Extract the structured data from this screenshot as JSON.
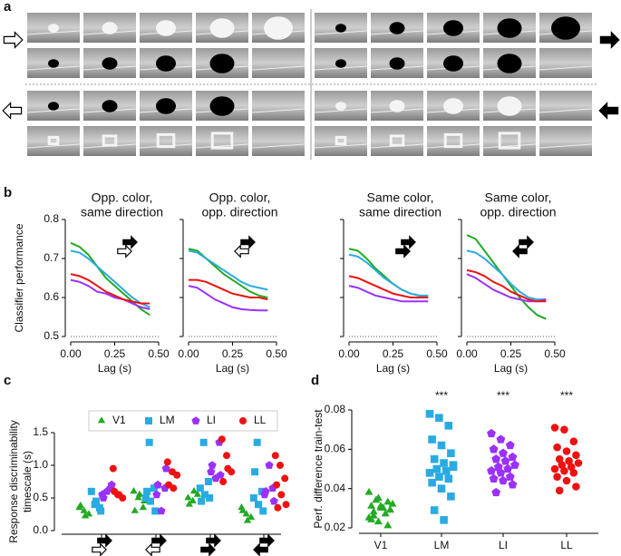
{
  "panel_labels": [
    "a",
    "b",
    "c",
    "d"
  ],
  "chart_data": [
    {
      "type": "line",
      "title": [
        "Opp. color,",
        "same direction"
      ],
      "xlabel": "Lag (s)",
      "ylabel": "Classifier performance",
      "x": [
        0,
        0.05,
        0.1,
        0.15,
        0.2,
        0.25,
        0.3,
        0.35,
        0.4,
        0.45
      ],
      "xlim": [
        0,
        0.5
      ],
      "xticks": [
        {
          "value": 0,
          "label": "0.00"
        },
        {
          "value": 0.25,
          "label": "0.25"
        },
        {
          "value": 0.5,
          "label": "0.50"
        }
      ],
      "ylim": [
        0.5,
        0.8
      ],
      "yticks": [
        0.5,
        0.6,
        0.7,
        0.8
      ],
      "series": [
        {
          "name": "V1",
          "color": "#22aa22",
          "values": [
            0.74,
            0.73,
            0.71,
            0.68,
            0.65,
            0.63,
            0.61,
            0.59,
            0.57,
            0.555
          ]
        },
        {
          "name": "LM",
          "color": "#29abe2",
          "values": [
            0.72,
            0.715,
            0.7,
            0.68,
            0.66,
            0.64,
            0.62,
            0.6,
            0.585,
            0.575
          ]
        },
        {
          "name": "LI",
          "color": "#9b30ff",
          "values": [
            0.645,
            0.64,
            0.63,
            0.615,
            0.61,
            0.6,
            0.595,
            0.585,
            0.575,
            0.57
          ]
        },
        {
          "name": "LL",
          "color": "#ee1111",
          "values": [
            0.66,
            0.655,
            0.645,
            0.63,
            0.615,
            0.605,
            0.595,
            0.59,
            0.585,
            0.585
          ]
        }
      ]
    },
    {
      "type": "line",
      "title": [
        "Opp. color,",
        "opp. direction"
      ],
      "xlabel": "Lag (s)",
      "x": [
        0,
        0.05,
        0.1,
        0.15,
        0.2,
        0.25,
        0.3,
        0.35,
        0.4,
        0.45
      ],
      "xlim": [
        0,
        0.5
      ],
      "xticks": [
        {
          "value": 0,
          "label": "0.00"
        },
        {
          "value": 0.25,
          "label": "0.25"
        },
        {
          "value": 0.5,
          "label": "0.50"
        }
      ],
      "ylim": [
        0.5,
        0.8
      ],
      "yticks": [
        0.5,
        0.6,
        0.7,
        0.8
      ],
      "series": [
        {
          "name": "V1",
          "color": "#22aa22",
          "values": [
            0.725,
            0.72,
            0.7,
            0.68,
            0.66,
            0.645,
            0.63,
            0.615,
            0.605,
            0.6
          ]
        },
        {
          "name": "LM",
          "color": "#29abe2",
          "values": [
            0.72,
            0.715,
            0.7,
            0.685,
            0.67,
            0.655,
            0.64,
            0.63,
            0.625,
            0.62
          ]
        },
        {
          "name": "LI",
          "color": "#9b30ff",
          "values": [
            0.63,
            0.625,
            0.61,
            0.595,
            0.585,
            0.575,
            0.57,
            0.568,
            0.567,
            0.567
          ]
        },
        {
          "name": "LL",
          "color": "#ee1111",
          "values": [
            0.645,
            0.645,
            0.64,
            0.63,
            0.62,
            0.61,
            0.605,
            0.6,
            0.6,
            0.595
          ]
        }
      ]
    },
    {
      "type": "line",
      "title": [
        "Same color,",
        "same direction"
      ],
      "xlabel": "Lag (s)",
      "x": [
        0,
        0.05,
        0.1,
        0.15,
        0.2,
        0.25,
        0.3,
        0.35,
        0.4,
        0.45
      ],
      "xlim": [
        0,
        0.5
      ],
      "xticks": [
        {
          "value": 0,
          "label": "0.00"
        },
        {
          "value": 0.25,
          "label": "0.25"
        },
        {
          "value": 0.5,
          "label": "0.50"
        }
      ],
      "ylim": [
        0.5,
        0.8
      ],
      "yticks": [
        0.5,
        0.6,
        0.7,
        0.8
      ],
      "series": [
        {
          "name": "V1",
          "color": "#22aa22",
          "values": [
            0.725,
            0.72,
            0.7,
            0.675,
            0.655,
            0.635,
            0.62,
            0.61,
            0.605,
            0.6
          ]
        },
        {
          "name": "LM",
          "color": "#29abe2",
          "values": [
            0.71,
            0.705,
            0.69,
            0.67,
            0.65,
            0.635,
            0.62,
            0.61,
            0.605,
            0.605
          ]
        },
        {
          "name": "LI",
          "color": "#9b30ff",
          "values": [
            0.63,
            0.625,
            0.615,
            0.605,
            0.6,
            0.595,
            0.59,
            0.59,
            0.59,
            0.59
          ]
        },
        {
          "name": "LL",
          "color": "#ee1111",
          "values": [
            0.655,
            0.65,
            0.64,
            0.63,
            0.62,
            0.61,
            0.605,
            0.6,
            0.6,
            0.6
          ]
        }
      ]
    },
    {
      "type": "line",
      "title": [
        "Same color,",
        "opp. direction"
      ],
      "xlabel": "Lag (s)",
      "x": [
        0,
        0.05,
        0.1,
        0.15,
        0.2,
        0.25,
        0.3,
        0.35,
        0.4,
        0.45
      ],
      "xlim": [
        0,
        0.5
      ],
      "xticks": [
        {
          "value": 0,
          "label": "0.00"
        },
        {
          "value": 0.25,
          "label": "0.25"
        },
        {
          "value": 0.5,
          "label": "0.50"
        }
      ],
      "ylim": [
        0.5,
        0.8
      ],
      "yticks": [
        0.5,
        0.6,
        0.7,
        0.8
      ],
      "series": [
        {
          "name": "V1",
          "color": "#22aa22",
          "values": [
            0.76,
            0.75,
            0.72,
            0.69,
            0.66,
            0.63,
            0.6,
            0.575,
            0.555,
            0.545
          ]
        },
        {
          "name": "LM",
          "color": "#29abe2",
          "values": [
            0.72,
            0.715,
            0.7,
            0.68,
            0.66,
            0.635,
            0.615,
            0.6,
            0.595,
            0.595
          ]
        },
        {
          "name": "LI",
          "color": "#9b30ff",
          "values": [
            0.66,
            0.65,
            0.635,
            0.62,
            0.61,
            0.6,
            0.595,
            0.59,
            0.59,
            0.595
          ]
        },
        {
          "name": "LL",
          "color": "#ee1111",
          "values": [
            0.67,
            0.665,
            0.655,
            0.64,
            0.63,
            0.615,
            0.605,
            0.595,
            0.59,
            0.59
          ]
        }
      ]
    },
    {
      "type": "strip",
      "ylabel": [
        "Response discriminability",
        "timescale (s)"
      ],
      "categories": [
        null,
        null,
        null,
        null
      ],
      "ylim": [
        0,
        1.5
      ],
      "yticks": [
        {
          "value": 0,
          "label": "0.0"
        },
        0.5,
        {
          "value": 1,
          "label": "1.0"
        },
        1.5
      ],
      "series": [
        {
          "name": "V1",
          "color": "#22aa22",
          "marker": "triangle",
          "values": [
            [
              0.35,
              0.3,
              0.25,
              0.38,
              0.22
            ],
            [
              0.6,
              0.5,
              0.35,
              0.3,
              0.55,
              0.45
            ],
            [
              0.5,
              0.45,
              0.55,
              0.4,
              0.6
            ],
            [
              0.35,
              0.25,
              0.2,
              0.3,
              0.15
            ]
          ]
        },
        {
          "name": "LM",
          "color": "#29abe2",
          "marker": "square",
          "values": [
            [
              0.4,
              0.35,
              0.6,
              0.45,
              0.3
            ],
            [
              1.35,
              0.65,
              0.5,
              0.45,
              0.3,
              0.6
            ],
            [
              1.35,
              0.75,
              0.65,
              0.55,
              0.5,
              0.45
            ],
            [
              1.35,
              0.6,
              0.5,
              0.4,
              0.3,
              0.9
            ]
          ]
        },
        {
          "name": "LI",
          "color": "#9b30ff",
          "marker": "pentagon",
          "values": [
            [
              0.65,
              0.55,
              0.6,
              0.7,
              0.5
            ],
            [
              0.65,
              0.55,
              0.3,
              0.95,
              0.7
            ],
            [
              1.35,
              0.9,
              0.8,
              0.85,
              1.0
            ],
            [
              0.65,
              0.55,
              1.0,
              0.45,
              0.6
            ]
          ]
        },
        {
          "name": "LL",
          "color": "#ee1111",
          "marker": "circle",
          "values": [
            [
              0.95,
              0.55,
              0.5,
              0.6,
              0.55
            ],
            [
              1.05,
              0.9,
              0.85,
              0.7,
              0.65
            ],
            [
              1.4,
              1.15,
              0.9,
              0.75,
              0.95
            ],
            [
              1.15,
              1.0,
              0.8,
              0.7,
              0.55,
              0.4,
              0.35
            ]
          ]
        }
      ]
    },
    {
      "type": "group-strip",
      "ylabel": "Perf. difference train-test",
      "categories": [
        "V1",
        "LM",
        "LI",
        "LL"
      ],
      "colors": [
        "#22aa22",
        "#29abe2",
        "#9b30ff",
        "#ee1111"
      ],
      "markers": [
        "triangle",
        "square",
        "pentagon",
        "circle"
      ],
      "annotations": [
        null,
        "***",
        "***",
        "***"
      ],
      "ylim": [
        0.02,
        0.08
      ],
      "yticks": [
        0.02,
        0.04,
        0.06,
        0.08
      ],
      "values": [
        [
          0.038,
          0.035,
          0.033,
          0.031,
          0.03,
          0.029,
          0.028,
          0.03,
          0.032,
          0.034,
          0.027,
          0.025,
          0.023,
          0.021,
          0.024,
          0.031,
          0.029,
          0.026
        ],
        [
          0.078,
          0.076,
          0.072,
          0.065,
          0.062,
          0.058,
          0.055,
          0.053,
          0.051,
          0.05,
          0.049,
          0.048,
          0.046,
          0.045,
          0.043,
          0.04,
          0.036,
          0.029,
          0.024,
          0.052
        ],
        [
          0.068,
          0.065,
          0.062,
          0.06,
          0.058,
          0.056,
          0.055,
          0.054,
          0.052,
          0.051,
          0.05,
          0.049,
          0.048,
          0.046,
          0.045,
          0.044,
          0.042,
          0.038
        ],
        [
          0.071,
          0.07,
          0.064,
          0.061,
          0.059,
          0.057,
          0.055,
          0.054,
          0.053,
          0.052,
          0.051,
          0.05,
          0.049,
          0.048,
          0.046,
          0.044,
          0.041,
          0.039
        ]
      ]
    }
  ]
}
